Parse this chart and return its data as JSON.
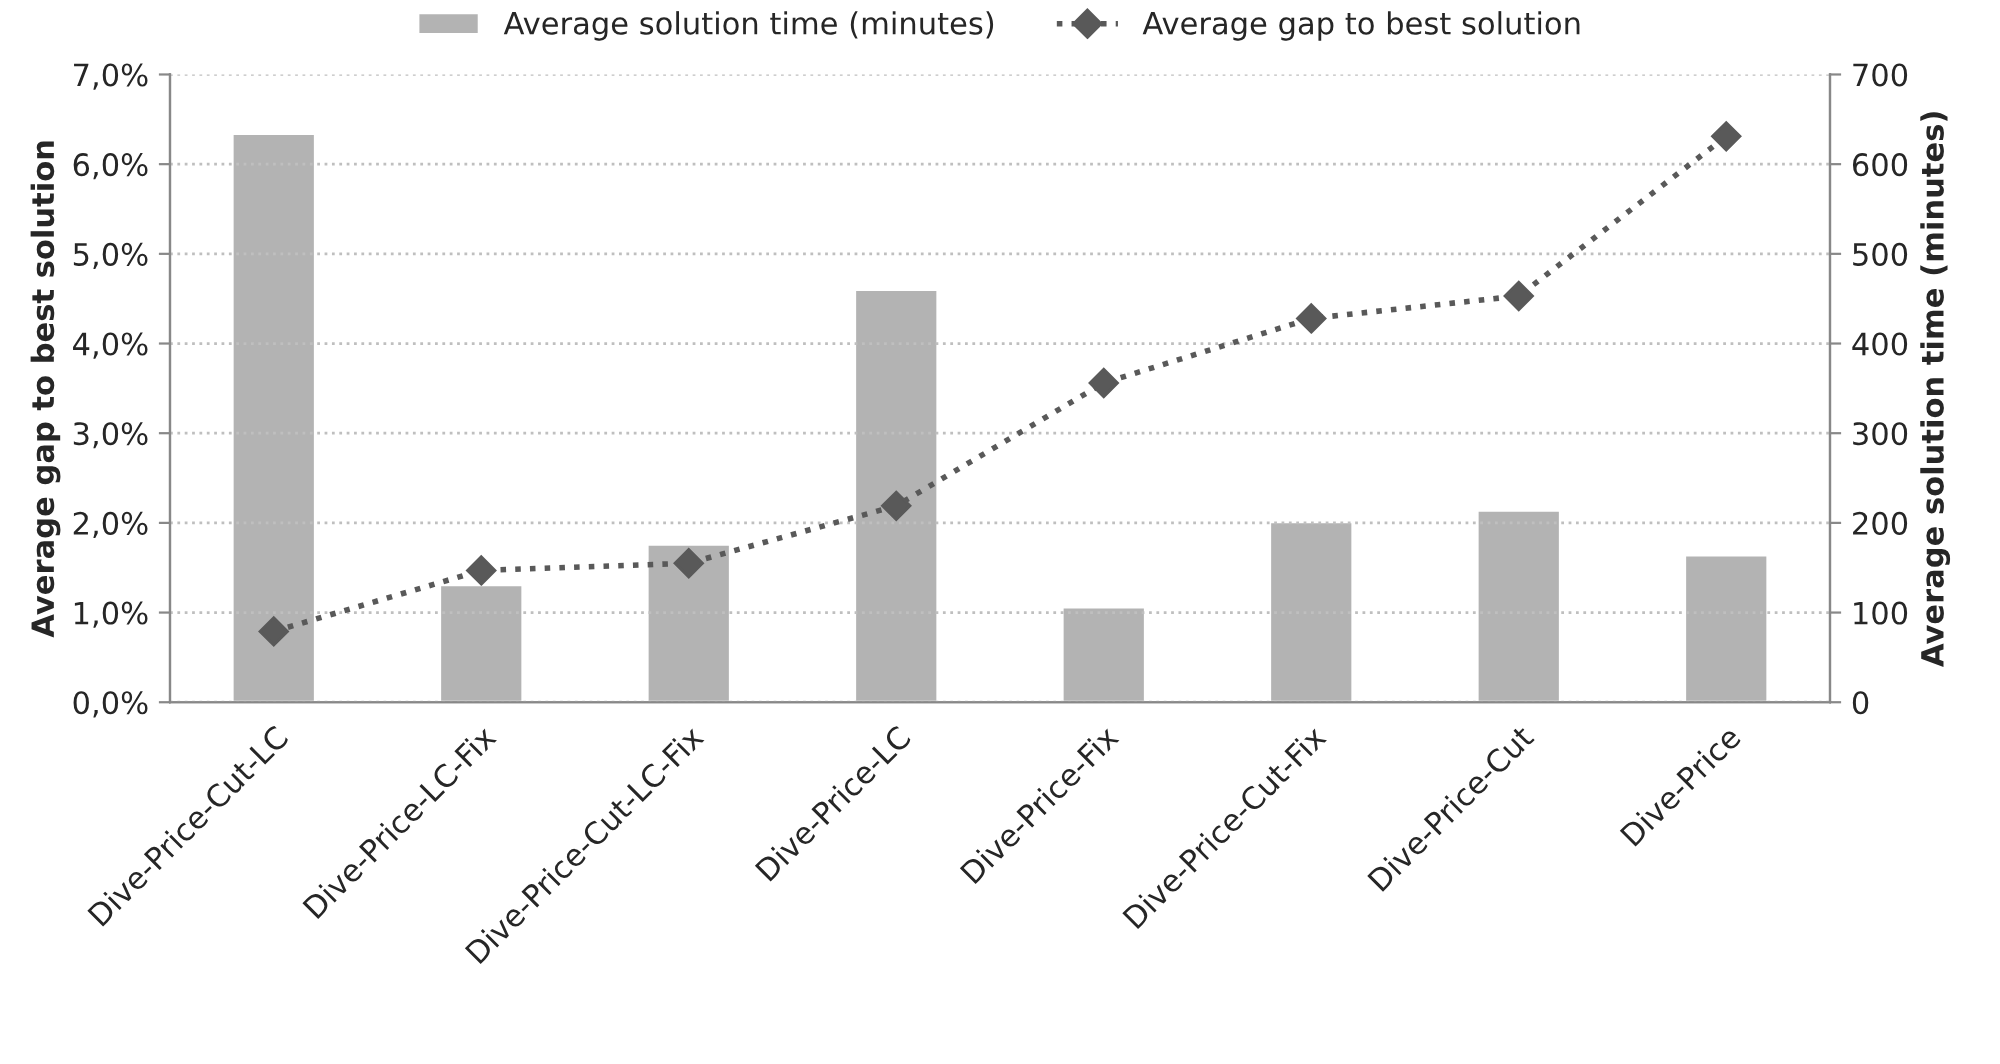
{
  "chart_data": {
    "type": "bar",
    "categories": [
      "Dive-Price-Cut-LC",
      "Dive-Price-LC-Fix",
      "Dive-Price-Cut-LC-Fix",
      "Dive-Price-LC",
      "Dive-Price-Fix",
      "Dive-Price-Cut-Fix",
      "Dive-Price-Cut",
      "Dive-Price"
    ],
    "series": [
      {
        "name": "Average solution time (minutes)",
        "axis": "y2",
        "color": "#b3b3b3",
        "values": [
          634,
          131,
          176,
          460,
          106,
          201,
          214,
          164
        ]
      },
      {
        "name": "Average gap to best solution",
        "type": "line",
        "axis": "y",
        "color": "#595959",
        "marker": "diamond",
        "line_style": "dotted",
        "values": [
          0.79,
          1.47,
          1.55,
          2.19,
          3.56,
          4.28,
          4.53,
          6.31
        ]
      }
    ],
    "ylabel": "Average gap to best solution",
    "y2label": "Average solution time (minutes)",
    "ylim": [
      0,
      7
    ],
    "yticks": [
      {
        "value": 0,
        "label": "0,0%"
      },
      {
        "value": 1,
        "label": "1,0%"
      },
      {
        "value": 2,
        "label": "2,0%"
      },
      {
        "value": 3,
        "label": "3,0%"
      },
      {
        "value": 4,
        "label": "4,0%"
      },
      {
        "value": 5,
        "label": "5,0%"
      },
      {
        "value": 6,
        "label": "6,0%"
      },
      {
        "value": 7,
        "label": "7,0%"
      }
    ],
    "y2lim": [
      0,
      700
    ],
    "y2ticks": [
      0,
      100,
      200,
      300,
      400,
      500,
      600,
      700
    ],
    "grid": "y",
    "legend": "top"
  }
}
